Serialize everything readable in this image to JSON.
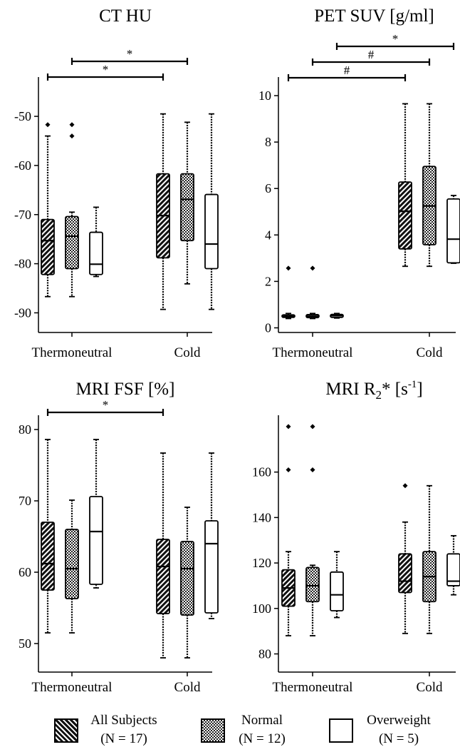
{
  "chart_data": [
    {
      "type": "box",
      "title": "CT HU",
      "categories": [
        "Thermoneutral",
        "Cold"
      ],
      "ylim": [
        -94,
        -42
      ],
      "yticks": [
        -50,
        -60,
        -70,
        -80,
        -90
      ],
      "series": [
        {
          "name": "All Subjects",
          "boxes": [
            {
              "min": -86.7,
              "q1": -82.2,
              "median": -75.3,
              "q3": -71.0,
              "max": -54.0,
              "outliers": [
                -51.7
              ]
            },
            {
              "min": -89.3,
              "q1": -78.8,
              "median": -70.2,
              "q3": -61.7,
              "max": -49.5,
              "outliers": []
            }
          ]
        },
        {
          "name": "Normal",
          "boxes": [
            {
              "min": -86.7,
              "q1": -81.0,
              "median": -74.4,
              "q3": -70.4,
              "max": -69.5,
              "outliers": [
                -51.7,
                -54.0
              ]
            },
            {
              "min": -84.1,
              "q1": -75.3,
              "median": -66.9,
              "q3": -61.7,
              "max": -51.2,
              "outliers": []
            }
          ]
        },
        {
          "name": "Overweight",
          "boxes": [
            {
              "min": -82.6,
              "q1": -82.2,
              "median": -80.1,
              "q3": -73.6,
              "max": -68.5,
              "outliers": []
            },
            {
              "min": -89.3,
              "q1": -81.0,
              "median": -76.0,
              "q3": -65.9,
              "max": -49.5,
              "outliers": []
            }
          ]
        }
      ],
      "significance": [
        {
          "label": "*",
          "from": [
            0,
            1
          ],
          "to": [
            1,
            1
          ],
          "level": 1
        },
        {
          "label": "*",
          "from": [
            0,
            0
          ],
          "to": [
            1,
            0
          ],
          "level": 0
        }
      ]
    },
    {
      "type": "box",
      "title": "PET SUV [g/ml]",
      "categories": [
        "Thermoneutral",
        "Cold"
      ],
      "ylim": [
        -0.2,
        10.8
      ],
      "yticks": [
        10,
        8,
        6,
        4,
        2,
        0
      ],
      "series": [
        {
          "name": "All Subjects",
          "boxes": [
            {
              "min": 0.4,
              "q1": 0.45,
              "median": 0.5,
              "q3": 0.56,
              "max": 0.62,
              "outliers": [
                2.57
              ]
            },
            {
              "min": 2.65,
              "q1": 3.4,
              "median": 5.02,
              "q3": 6.28,
              "max": 9.65,
              "outliers": []
            }
          ]
        },
        {
          "name": "Normal",
          "boxes": [
            {
              "min": 0.4,
              "q1": 0.44,
              "median": 0.5,
              "q3": 0.57,
              "max": 0.62,
              "outliers": [
                2.57
              ]
            },
            {
              "min": 2.65,
              "q1": 3.58,
              "median": 5.25,
              "q3": 6.95,
              "max": 9.65,
              "outliers": []
            }
          ]
        },
        {
          "name": "Overweight",
          "boxes": [
            {
              "min": 0.42,
              "q1": 0.45,
              "median": 0.52,
              "q3": 0.58,
              "max": 0.62,
              "outliers": []
            },
            {
              "min": 2.78,
              "q1": 2.8,
              "median": 3.82,
              "q3": 5.55,
              "max": 5.7,
              "outliers": []
            }
          ]
        }
      ],
      "significance": [
        {
          "label": "*",
          "from": [
            0,
            2
          ],
          "to": [
            1,
            2
          ],
          "level": 2
        },
        {
          "label": "#",
          "from": [
            0,
            1
          ],
          "to": [
            1,
            1
          ],
          "level": 1
        },
        {
          "label": "#",
          "from": [
            0,
            0
          ],
          "to": [
            1,
            0
          ],
          "level": 0
        }
      ]
    },
    {
      "type": "box",
      "title": "MRI FSF [%]",
      "categories": [
        "Thermoneutral",
        "Cold"
      ],
      "ylim": [
        46,
        82
      ],
      "yticks": [
        80,
        70,
        60,
        50
      ],
      "series": [
        {
          "name": "All Subjects",
          "boxes": [
            {
              "min": 51.5,
              "q1": 57.5,
              "median": 61.2,
              "q3": 67.0,
              "max": 78.6,
              "outliers": []
            },
            {
              "min": 48.0,
              "q1": 54.2,
              "median": 60.8,
              "q3": 64.6,
              "max": 76.7,
              "outliers": []
            }
          ]
        },
        {
          "name": "Normal",
          "boxes": [
            {
              "min": 51.5,
              "q1": 56.3,
              "median": 60.5,
              "q3": 66.0,
              "max": 70.1,
              "outliers": []
            },
            {
              "min": 48.0,
              "q1": 54.0,
              "median": 60.5,
              "q3": 64.3,
              "max": 69.1,
              "outliers": []
            }
          ]
        },
        {
          "name": "Overweight",
          "boxes": [
            {
              "min": 57.8,
              "q1": 58.3,
              "median": 65.7,
              "q3": 70.6,
              "max": 78.6,
              "outliers": []
            },
            {
              "min": 53.5,
              "q1": 54.3,
              "median": 64.0,
              "q3": 67.2,
              "max": 76.7,
              "outliers": []
            }
          ]
        }
      ],
      "significance": [
        {
          "label": "*",
          "from": [
            0,
            0
          ],
          "to": [
            1,
            0
          ],
          "level": 0
        }
      ]
    },
    {
      "type": "box",
      "title": "MRI R₂* [s⁻¹]",
      "title_parts": {
        "main": "MRI R",
        "sub": "2",
        "mid": "* [s",
        "sup": "-1",
        "end": "]"
      },
      "categories": [
        "Thermoneutral",
        "Cold"
      ],
      "ylim": [
        72,
        185
      ],
      "yticks": [
        160,
        140,
        120,
        100,
        80
      ],
      "series": [
        {
          "name": "All Subjects",
          "boxes": [
            {
              "min": 88,
              "q1": 101,
              "median": 109,
              "q3": 117,
              "max": 125,
              "outliers": [
                161,
                180
              ]
            },
            {
              "min": 89,
              "q1": 107,
              "median": 112,
              "q3": 124,
              "max": 138,
              "outliers": [
                154
              ]
            }
          ]
        },
        {
          "name": "Normal",
          "boxes": [
            {
              "min": 88,
              "q1": 103,
              "median": 110,
              "q3": 118,
              "max": 119,
              "outliers": [
                161,
                180
              ]
            },
            {
              "min": 89,
              "q1": 103,
              "median": 114,
              "q3": 125,
              "max": 154,
              "outliers": []
            }
          ]
        },
        {
          "name": "Overweight",
          "boxes": [
            {
              "min": 96,
              "q1": 99,
              "median": 106,
              "q3": 116,
              "max": 125,
              "outliers": []
            },
            {
              "min": 106,
              "q1": 110,
              "median": 112,
              "q3": 124,
              "max": 132,
              "outliers": []
            }
          ]
        }
      ],
      "significance": []
    }
  ],
  "legend": {
    "items": [
      {
        "name": "All Subjects",
        "n": "(N = 17)",
        "pattern": "diagonal"
      },
      {
        "name": "Normal",
        "n": "(N = 12)",
        "pattern": "checker"
      },
      {
        "name": "Overweight",
        "n": "(N = 5)",
        "pattern": "none"
      }
    ]
  },
  "colors": {
    "box_all": "#1a1a1a",
    "box_normal": "#3a3a3a",
    "box_overweight": "#ffffff",
    "line": "#000000"
  }
}
